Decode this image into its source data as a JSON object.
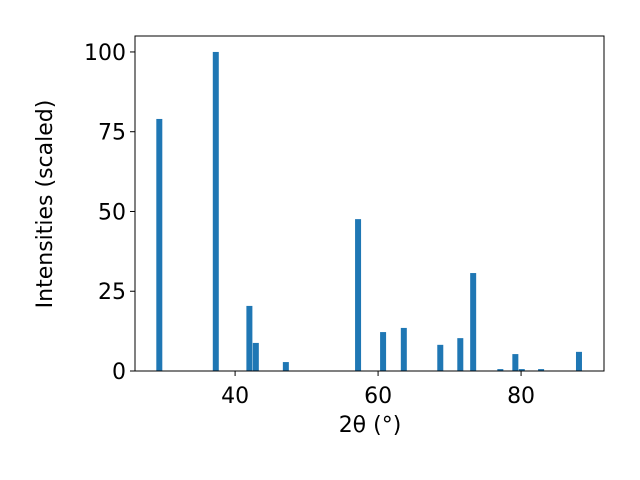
{
  "chart_data": {
    "type": "bar",
    "xlabel": "2θ (°)",
    "ylabel": "Intensities (scaled)",
    "x": [
      29.4,
      37.3,
      42.0,
      42.9,
      47.1,
      57.2,
      60.7,
      63.6,
      68.7,
      71.5,
      73.3,
      77.1,
      79.2,
      80.1,
      82.8,
      88.1
    ],
    "values": [
      79,
      100,
      20.4,
      8.8,
      2.8,
      47.6,
      12.2,
      13.5,
      8.2,
      10.3,
      30.7,
      0.6,
      5.3,
      0.6,
      0.6,
      6.0
    ],
    "color": "#1f77b4",
    "xlim": [
      26.0,
      91.6
    ],
    "ylim": [
      0,
      105
    ],
    "xticks": [
      40,
      60,
      80
    ],
    "yticks": [
      0,
      25,
      50,
      75,
      100
    ]
  }
}
